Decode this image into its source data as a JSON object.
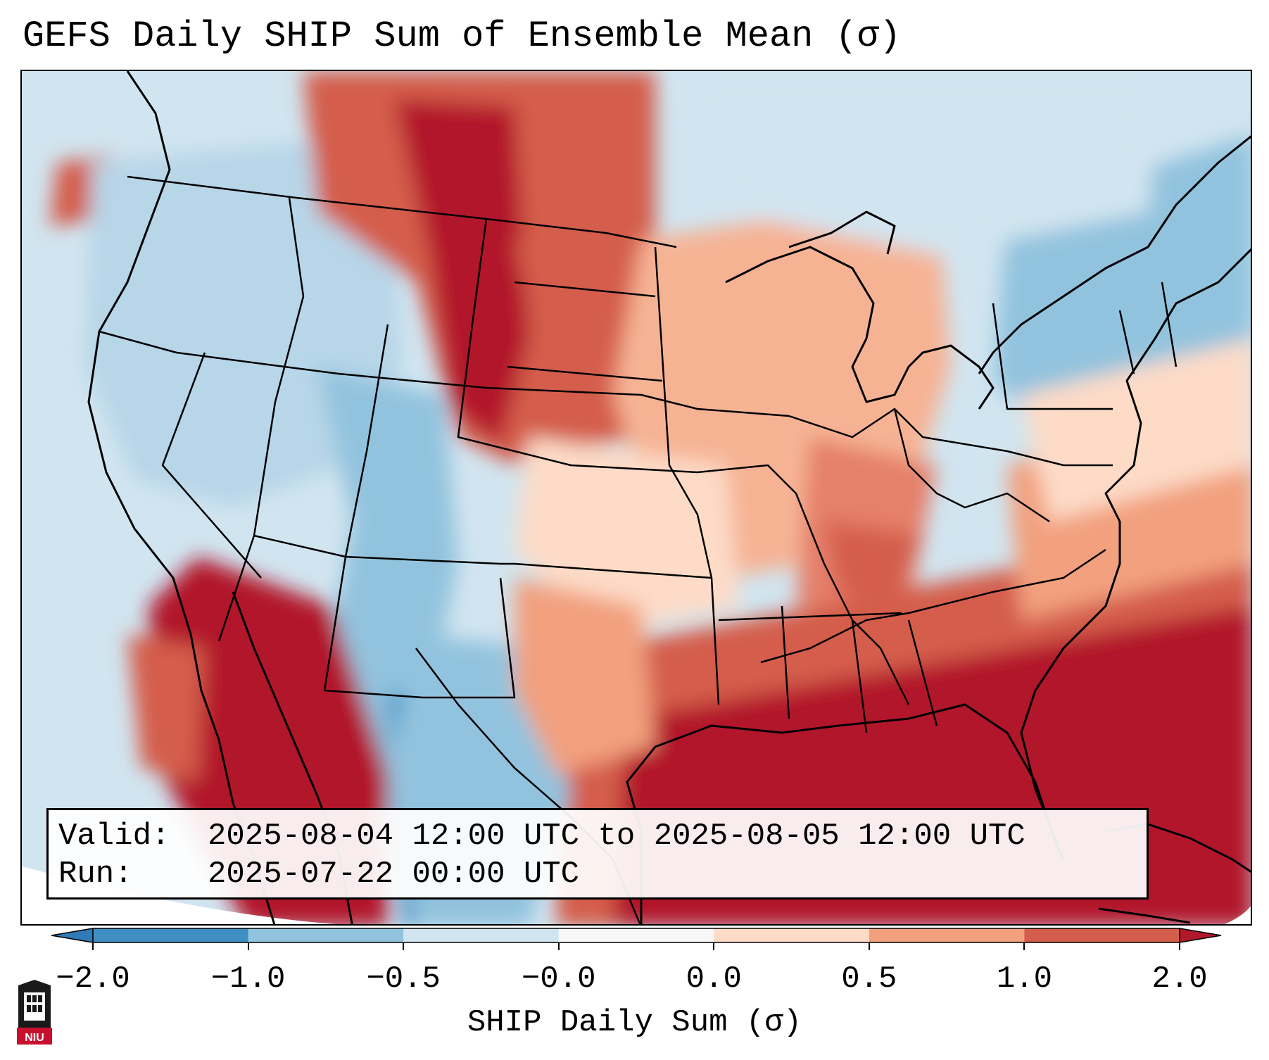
{
  "title": "GEFS Daily SHIP Sum of Ensemble Mean (σ)",
  "info": {
    "valid_label": "Valid:",
    "valid_value": "2025-08-04 12:00 UTC to 2025-08-05 12:00 UTC",
    "run_label": "Run:",
    "run_value": "2025-07-22 00:00 UTC"
  },
  "colorbar": {
    "label": "SHIP Daily Sum (σ)",
    "ticks": [
      "−2.0",
      "−1.0",
      "−0.5",
      "−0.0",
      "0.0",
      "0.5",
      "1.0",
      "2.0"
    ],
    "bins": [
      {
        "from": -2.0,
        "to": -1.0,
        "color": "#3f8fc4"
      },
      {
        "from": -1.0,
        "to": -0.5,
        "color": "#92c3de"
      },
      {
        "from": -0.5,
        "to": -0.0,
        "color": "#d1e5f0"
      },
      {
        "from": -0.0,
        "to": 0.0,
        "color": "#f7f7f7"
      },
      {
        "from": 0.0,
        "to": 0.5,
        "color": "#fddbc7"
      },
      {
        "from": 0.5,
        "to": 1.0,
        "color": "#f2a07e"
      },
      {
        "from": 1.0,
        "to": 2.0,
        "color": "#d45d4c"
      }
    ],
    "under_color": "#2f7bb8",
    "over_color": "#b2182b"
  },
  "logo": {
    "text": "NIU"
  }
}
